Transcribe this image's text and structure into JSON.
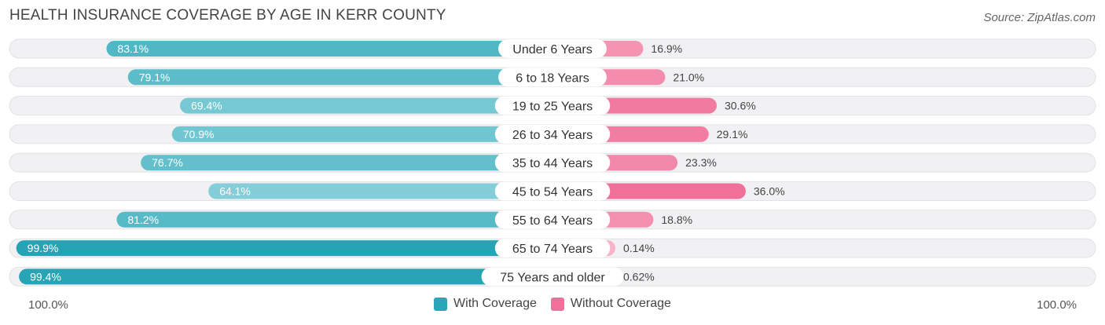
{
  "header": {
    "title": "HEALTH INSURANCE COVERAGE BY AGE IN KERR COUNTY",
    "source": "Source: ZipAtlas.com"
  },
  "axis": {
    "left_label": "100.0%",
    "right_label": "100.0%"
  },
  "legend": [
    {
      "label": "With Coverage",
      "color": "#2aa6b8"
    },
    {
      "label": "Without Coverage",
      "color": "#f0709a"
    }
  ],
  "chart_data": {
    "type": "bar",
    "orientation": "horizontal-diverging",
    "title": "HEALTH INSURANCE COVERAGE BY AGE IN KERR COUNTY",
    "categories": [
      "Under 6 Years",
      "6 to 18 Years",
      "19 to 25 Years",
      "26 to 34 Years",
      "35 to 44 Years",
      "45 to 54 Years",
      "55 to 64 Years",
      "65 to 74 Years",
      "75 Years and older"
    ],
    "series": [
      {
        "name": "With Coverage",
        "values": [
          83.1,
          79.1,
          69.4,
          70.9,
          76.7,
          64.1,
          81.2,
          99.9,
          99.4
        ],
        "labels": [
          "83.1%",
          "79.1%",
          "69.4%",
          "70.9%",
          "76.7%",
          "64.1%",
          "81.2%",
          "99.9%",
          "99.4%"
        ]
      },
      {
        "name": "Without Coverage",
        "values": [
          16.9,
          21.0,
          30.6,
          29.1,
          23.3,
          36.0,
          18.8,
          0.14,
          0.62
        ],
        "labels": [
          "16.9%",
          "21.0%",
          "30.6%",
          "29.1%",
          "23.3%",
          "36.0%",
          "18.8%",
          "0.14%",
          "0.62%"
        ]
      }
    ],
    "xlim": [
      -100,
      100
    ],
    "legend_position": "bottom-center"
  }
}
